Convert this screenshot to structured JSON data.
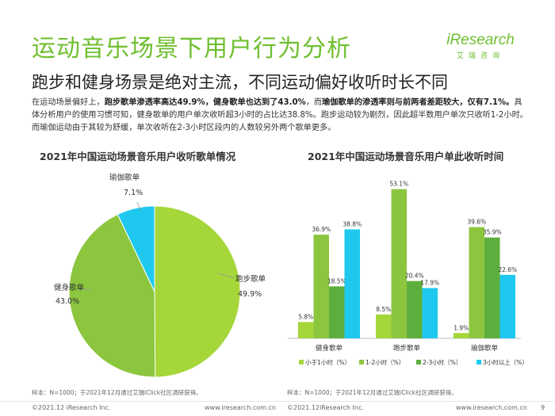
{
  "title": "运动音乐场景下用户行为分析",
  "subtitle": "跑步和健身场景是绝对主流，不同运动偏好收听时长不同",
  "logo": {
    "main": "iResearch",
    "sub": "艾瑞咨询"
  },
  "body": {
    "p1": "在运动场景偏好上，",
    "b1": "跑步歌单渗透率高达49.9%，健身歌单也达到了43.0%",
    "p2": "，而",
    "b2": "瑜伽歌单的渗透率则与前两者差距较大，仅有7.1%。",
    "p3": "具体分析用户的使用习惯可知，健身歌单的用户单次收听超3小时的占比达38.8%。跑步运动较为剧烈，因此超半数用户单次只收听1-2小时。而瑜伽运动由于其较为舒缓，单次收听在2-3小时区段内的人数较另外两个歌单更多。"
  },
  "colors": {
    "green_light": "#a5d63a",
    "green_mid": "#8cc63f",
    "green_dark": "#5daf3d",
    "cyan": "#1ec8ef",
    "title_green": "#6fbf2f"
  },
  "chart_data": [
    {
      "type": "pie",
      "title": "2021年中国运动场景音乐用户收听歌单情况",
      "slices": [
        {
          "label": "跑步歌单",
          "value": 49.9,
          "display": "49.9%",
          "color": "#a5d63a"
        },
        {
          "label": "健身歌单",
          "value": 43.0,
          "display": "43.0%",
          "color": "#8cc63f"
        },
        {
          "label": "瑜伽歌单",
          "value": 7.1,
          "display": "7.1%",
          "color": "#1ec8ef"
        }
      ],
      "note": "样本：N=1000；于2021年12月通过艾瑞iClick社区调研获得。"
    },
    {
      "type": "bar",
      "title": "2021年中国运动场景音乐用户单此收听时间",
      "categories": [
        "健身歌单",
        "跑步歌单",
        "瑜伽歌单"
      ],
      "series": [
        {
          "name": "小于1小时（%）",
          "values": [
            5.8,
            8.5,
            1.9
          ],
          "color": "#a5d63a"
        },
        {
          "name": "1-2小时（%）",
          "values": [
            36.9,
            53.1,
            39.6
          ],
          "color": "#8cc63f"
        },
        {
          "name": "2-3小时（%）",
          "values": [
            18.5,
            20.4,
            35.9
          ],
          "color": "#5daf3d"
        },
        {
          "name": "3小时以上（%）",
          "values": [
            38.8,
            17.9,
            22.6
          ],
          "color": "#1ec8ef"
        }
      ],
      "value_labels": [
        [
          "5.8%",
          "36.9%",
          "18.5%",
          "38.8%"
        ],
        [
          "8.5%",
          "53.1%",
          "20.4%",
          "17.9%"
        ],
        [
          "1.9%",
          "39.6%",
          "35.9%",
          "22.6%"
        ]
      ],
      "ylim": [
        0,
        55
      ],
      "legend": "bottom",
      "note": "样本：N=1000；于2021年12月通过艾瑞iClick社区调研获得。"
    }
  ],
  "footer": {
    "left_copyright": "©2021.12 iResearch Inc.",
    "left_url": "www.iresearch.com.cn",
    "right_copyright": "©2021.12iResearch Inc.",
    "right_url": "www.iresearch.com.cn",
    "page": "9"
  }
}
